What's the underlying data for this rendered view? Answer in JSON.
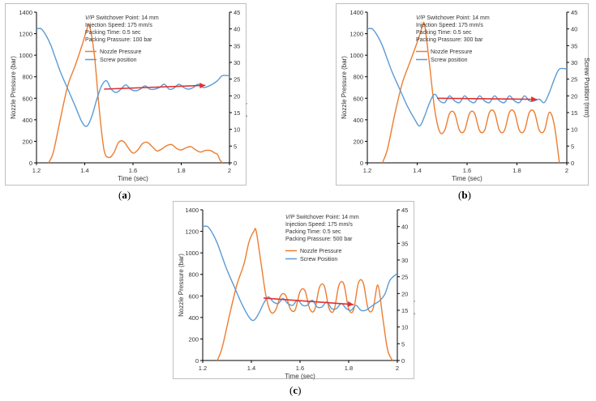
{
  "captions": {
    "a": "a",
    "b": "b",
    "c": "c"
  },
  "colors": {
    "nozzle": "#ED7D31",
    "screw": "#5B9BD5",
    "arrow": "#E03030",
    "axis": "#000000"
  },
  "chart_data": [
    {
      "id": "a",
      "type": "line",
      "xlabel": "Time (sec)",
      "ylabel": "Nozzle Pressure (bar)",
      "y2label": "Screw Position (mm)",
      "xlim": [
        1.2,
        2
      ],
      "xticks": [
        "1.2",
        "1.4",
        "1.6",
        "1.8",
        "2"
      ],
      "ylim": [
        0,
        1400
      ],
      "yticks": [
        "0",
        "200",
        "400",
        "600",
        "800",
        "1000",
        "1200",
        "1400"
      ],
      "y2lim": [
        0,
        45
      ],
      "y2ticks": [
        "0",
        "5",
        "10",
        "15",
        "20",
        "25",
        "30",
        "35",
        "40",
        "45"
      ],
      "annotation": [
        "V/P Switchover Point: 14 mm",
        "Injection Speed: 175 mm/s",
        "Packing Time: 0.5 sec",
        "Packing Prassure: 100 bar"
      ],
      "legend": [
        "Nozzle Pressure",
        "Screw position"
      ],
      "legend_position": "top-right",
      "series": [
        {
          "name": "Nozzle Pressure",
          "axis": "left",
          "x": [
            1.25,
            1.27,
            1.3,
            1.33,
            1.36,
            1.39,
            1.41,
            1.42,
            1.44,
            1.46,
            1.48,
            1.5,
            1.52,
            1.54,
            1.56,
            1.58,
            1.6,
            1.62,
            1.64,
            1.66,
            1.68,
            1.7,
            1.72,
            1.74,
            1.76,
            1.78,
            1.8,
            1.82,
            1.84,
            1.86,
            1.88,
            1.9,
            1.92,
            1.94,
            1.95,
            1.96,
            1.97
          ],
          "y": [
            0,
            100,
            420,
            720,
            900,
            1100,
            1250,
            1270,
            1000,
            500,
            120,
            50,
            90,
            190,
            200,
            140,
            90,
            120,
            180,
            190,
            150,
            110,
            130,
            160,
            170,
            135,
            120,
            140,
            150,
            120,
            100,
            115,
            115,
            90,
            80,
            30,
            0
          ]
        },
        {
          "name": "Screw position",
          "axis": "right",
          "x": [
            1.2,
            1.22,
            1.24,
            1.26,
            1.28,
            1.3,
            1.33,
            1.36,
            1.39,
            1.41,
            1.43,
            1.45,
            1.47,
            1.49,
            1.51,
            1.53,
            1.55,
            1.57,
            1.59,
            1.61,
            1.63,
            1.65,
            1.67,
            1.69,
            1.71,
            1.73,
            1.75,
            1.77,
            1.79,
            1.81,
            1.83,
            1.85,
            1.87,
            1.89,
            1.91,
            1.93,
            1.95,
            1.97,
            2.0
          ],
          "y": [
            40,
            40,
            38,
            35,
            31,
            27,
            22,
            17,
            12,
            11,
            14,
            19,
            23,
            24.5,
            22,
            21,
            22,
            23.3,
            22,
            21.5,
            22,
            23,
            22,
            22,
            22.5,
            23.5,
            22,
            22.3,
            23.5,
            22.5,
            22,
            22.5,
            23.5,
            22.5,
            22.8,
            23.5,
            24.5,
            26,
            26
          ]
        }
      ],
      "arrow": {
        "from": [
          1.48,
          685
        ],
        "to": [
          1.9,
          720
        ]
      }
    },
    {
      "id": "b",
      "type": "line",
      "xlabel": "Time (sec)",
      "ylabel": "Nozzle Pressure (bar)",
      "y2label": "Screw Position (mm)",
      "xlim": [
        1.2,
        2
      ],
      "xticks": [
        "1.2",
        "1.4",
        "1.6",
        "1.8",
        "2"
      ],
      "ylim": [
        0,
        1400
      ],
      "yticks": [
        "0",
        "200",
        "400",
        "600",
        "800",
        "1000",
        "1200",
        "1400"
      ],
      "y2lim": [
        0,
        45
      ],
      "y2ticks": [
        "0",
        "5",
        "10",
        "15",
        "20",
        "25",
        "30",
        "35",
        "40",
        "45"
      ],
      "annotation": [
        "V/P Switchover Point: 14 mm",
        "Injection Speed: 175 mm/s",
        "Packing Time: 0.5 sec",
        "Packing Prassure: 300 bar"
      ],
      "legend": [
        "Nozzle Pressure",
        "Screw position"
      ],
      "legend_position": "top-right",
      "series": [
        {
          "name": "Nozzle Pressure",
          "axis": "left",
          "x": [
            1.26,
            1.28,
            1.31,
            1.34,
            1.37,
            1.4,
            1.42,
            1.43,
            1.45,
            1.47,
            1.49,
            1.51,
            1.53,
            1.55,
            1.57,
            1.59,
            1.61,
            1.63,
            1.65,
            1.67,
            1.69,
            1.71,
            1.73,
            1.75,
            1.77,
            1.79,
            1.81,
            1.83,
            1.85,
            1.87,
            1.89,
            1.91,
            1.93,
            1.95,
            1.97
          ],
          "y": [
            0,
            120,
            450,
            740,
            930,
            1120,
            1260,
            1280,
            900,
            500,
            290,
            300,
            460,
            460,
            300,
            300,
            460,
            460,
            300,
            300,
            470,
            470,
            300,
            300,
            470,
            470,
            300,
            300,
            470,
            470,
            300,
            300,
            470,
            350,
            0
          ]
        },
        {
          "name": "Screw position",
          "axis": "right",
          "x": [
            1.2,
            1.22,
            1.24,
            1.26,
            1.28,
            1.3,
            1.33,
            1.36,
            1.39,
            1.41,
            1.43,
            1.45,
            1.47,
            1.49,
            1.51,
            1.53,
            1.55,
            1.57,
            1.59,
            1.61,
            1.63,
            1.65,
            1.67,
            1.69,
            1.71,
            1.73,
            1.75,
            1.77,
            1.79,
            1.81,
            1.83,
            1.85,
            1.87,
            1.89,
            1.91,
            1.93,
            1.95,
            1.97,
            2.0
          ],
          "y": [
            40,
            40,
            38,
            35,
            31,
            27,
            22,
            17,
            13,
            11,
            14,
            18,
            20.5,
            18.5,
            18,
            20,
            18.5,
            18,
            20,
            18.5,
            18,
            20,
            18.5,
            18,
            20,
            18.5,
            18,
            20,
            18.5,
            18,
            20,
            18.5,
            18.5,
            19,
            18,
            21,
            25,
            28,
            28
          ]
        }
      ],
      "arrow": {
        "from": [
          1.48,
          600
        ],
        "to": [
          1.88,
          590
        ]
      }
    },
    {
      "id": "c",
      "type": "line",
      "xlabel": "Time (sec)",
      "ylabel": "Nozzle Pressure (bar)",
      "y2label": "Screw Position (mm)",
      "xlim": [
        1.2,
        2
      ],
      "xticks": [
        "1.2",
        "1.4",
        "1.6",
        "1.8",
        "2"
      ],
      "ylim": [
        0,
        1400
      ],
      "yticks": [
        "0",
        "200",
        "400",
        "600",
        "800",
        "1000",
        "1200",
        "1400"
      ],
      "y2lim": [
        0,
        45
      ],
      "y2ticks": [
        "0",
        "5",
        "10",
        "15",
        "20",
        "25",
        "30",
        "35",
        "40",
        "45"
      ],
      "annotation": [
        "V/P Switchover Point: 14 mm",
        "Injection Speed: 175 mm/s",
        "Packing Time: 0.5 sec",
        "Packing Prassure: 500 bar"
      ],
      "legend": [
        "Nozzle Pressure",
        "Screw Position"
      ],
      "legend_position": "top-right",
      "series": [
        {
          "name": "Nozzle Pressure",
          "axis": "left",
          "x": [
            1.26,
            1.28,
            1.31,
            1.34,
            1.37,
            1.39,
            1.41,
            1.42,
            1.44,
            1.46,
            1.48,
            1.5,
            1.52,
            1.54,
            1.56,
            1.58,
            1.6,
            1.62,
            1.64,
            1.66,
            1.68,
            1.7,
            1.72,
            1.74,
            1.76,
            1.78,
            1.8,
            1.82,
            1.84,
            1.86,
            1.88,
            1.9,
            1.92,
            1.94,
            1.96,
            1.98
          ],
          "y": [
            0,
            120,
            420,
            700,
            900,
            1100,
            1200,
            1200,
            900,
            600,
            450,
            470,
            600,
            610,
            480,
            470,
            640,
            650,
            480,
            470,
            680,
            690,
            480,
            470,
            700,
            710,
            480,
            470,
            720,
            720,
            480,
            480,
            700,
            400,
            100,
            0
          ]
        },
        {
          "name": "Screw Position",
          "axis": "right",
          "x": [
            1.2,
            1.22,
            1.24,
            1.26,
            1.28,
            1.3,
            1.33,
            1.36,
            1.39,
            1.41,
            1.43,
            1.45,
            1.47,
            1.49,
            1.51,
            1.53,
            1.55,
            1.57,
            1.59,
            1.61,
            1.63,
            1.65,
            1.67,
            1.69,
            1.71,
            1.73,
            1.75,
            1.77,
            1.79,
            1.81,
            1.83,
            1.85,
            1.87,
            1.89,
            1.91,
            1.93,
            1.95,
            1.97,
            2.0
          ],
          "y": [
            40,
            40,
            38,
            35,
            31,
            27,
            22,
            17,
            13,
            12,
            14,
            17,
            19,
            17.5,
            17,
            18.5,
            17,
            16.5,
            18,
            16.5,
            16.5,
            18,
            16,
            16,
            17.5,
            15.5,
            15.5,
            17,
            15.5,
            15,
            16.5,
            15,
            15,
            16,
            17,
            18,
            20,
            24,
            26
          ]
        }
      ],
      "arrow": {
        "from": [
          1.45,
          580
        ],
        "to": [
          1.82,
          520
        ]
      }
    }
  ]
}
